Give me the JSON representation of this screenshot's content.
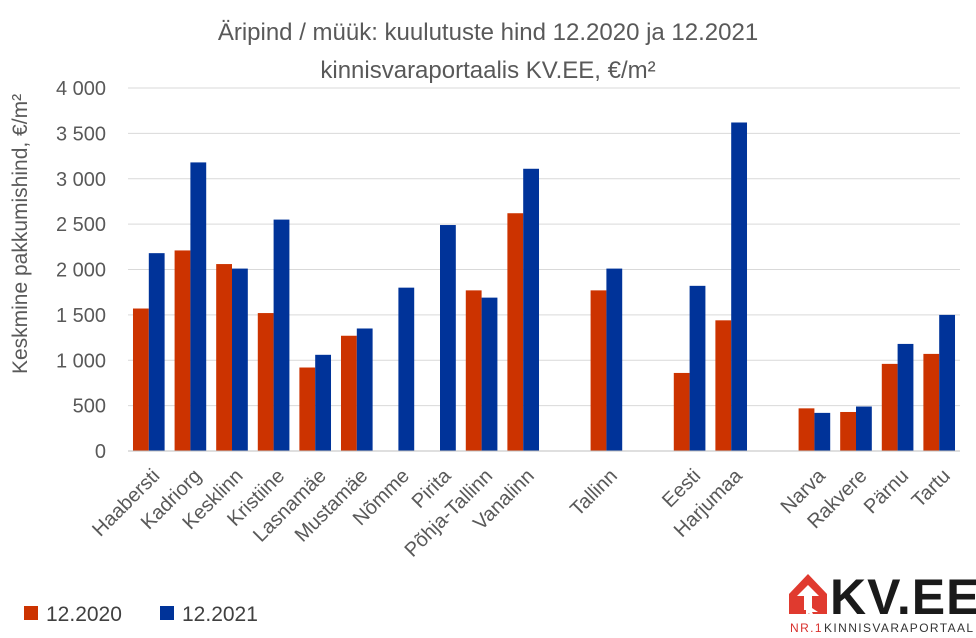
{
  "chart_data": {
    "type": "bar",
    "title_lines": [
      "Äripind / müük: kuulutuste hind 12.2020 ja 12.2021",
      "kinnisvaraportaalis KV.EE, €/m²"
    ],
    "ylabel": "Keskmine pakkumishind, €/m²",
    "xlabel": "",
    "ylim": [
      0,
      4000
    ],
    "yticks": [
      0,
      500,
      1000,
      1500,
      2000,
      2500,
      3000,
      3500,
      4000
    ],
    "ytick_labels": [
      "0",
      "500",
      "1 000",
      "1 500",
      "2 000",
      "2 500",
      "3 000",
      "3 500",
      "4 000"
    ],
    "grid": true,
    "legend_position": "bottom-left",
    "categories": [
      "Haabersti",
      "Kadriorg",
      "Kesklinn",
      "Kristiine",
      "Lasnamäe",
      "Mustamäe",
      "Nõmme",
      "Pirita",
      "Põhja-Tallinn",
      "Vanalinn",
      "",
      "Tallinn",
      "",
      "Eesti",
      "Harjumaa",
      "",
      "Narva",
      "Rakvere",
      "Pärnu",
      "Tartu"
    ],
    "series": [
      {
        "name": "12.2020",
        "color": "#cc3300",
        "values": [
          1570,
          2210,
          2060,
          1520,
          920,
          1270,
          null,
          null,
          1770,
          2620,
          null,
          1770,
          null,
          860,
          1440,
          null,
          470,
          430,
          960,
          1070
        ]
      },
      {
        "name": "12.2021",
        "color": "#003399",
        "values": [
          2180,
          3180,
          2010,
          2550,
          1060,
          1350,
          1800,
          2490,
          1690,
          3110,
          null,
          2010,
          null,
          1820,
          3620,
          null,
          420,
          490,
          1180,
          1500
        ]
      }
    ]
  },
  "logo": {
    "text": "KV.EE",
    "tagline_prefix": "NR.1",
    "tagline": "KINNISVARAPORTAAL",
    "color_red": "#e03a2f",
    "color_dark": "#1a1a1a"
  }
}
